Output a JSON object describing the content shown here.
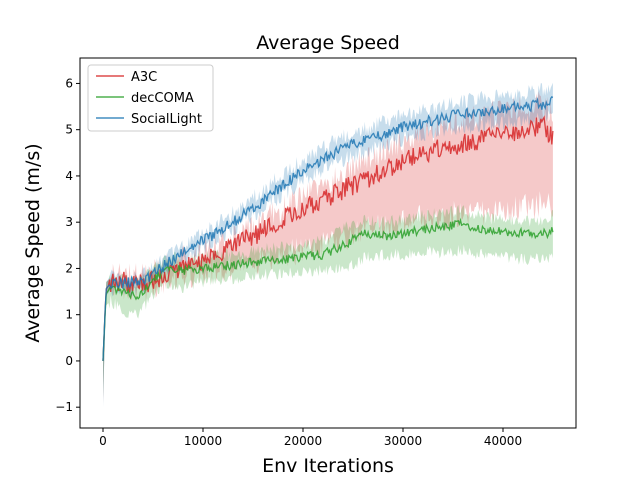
{
  "chart_data": {
    "type": "line",
    "title": "Average Speed",
    "xlabel": "Env Iterations",
    "ylabel": "Average Speed (m/s)",
    "xlim": [
      -2300,
      47300
    ],
    "ylim": [
      -1.45,
      6.55
    ],
    "x_ticks": [
      0,
      10000,
      20000,
      30000,
      40000
    ],
    "x_tick_labels": [
      "0",
      "10000",
      "20000",
      "30000",
      "40000"
    ],
    "y_ticks": [
      -1,
      0,
      1,
      2,
      3,
      4,
      5,
      6
    ],
    "y_tick_labels": [
      "−1",
      "0",
      "1",
      "2",
      "3",
      "4",
      "5",
      "6"
    ],
    "grid": false,
    "legend_position": "upper-left",
    "shaded_band": "min-max range across runs",
    "series": [
      {
        "name": "A3C",
        "color": "#d62728",
        "x": [
          0,
          300,
          800,
          2000,
          4000,
          6000,
          8000,
          10000,
          12000,
          14000,
          16000,
          18000,
          20000,
          22000,
          24000,
          26000,
          28000,
          30000,
          32000,
          34000,
          36000,
          38000,
          40000,
          42000,
          44000,
          45000
        ],
        "mean": [
          0.0,
          1.55,
          1.7,
          1.72,
          1.65,
          1.85,
          2.05,
          2.2,
          2.4,
          2.6,
          2.8,
          3.1,
          3.3,
          3.5,
          3.7,
          3.9,
          4.1,
          4.3,
          4.5,
          4.6,
          4.7,
          4.8,
          4.9,
          5.0,
          5.1,
          4.8
        ],
        "low": [
          -0.9,
          1.4,
          1.6,
          1.6,
          1.55,
          1.7,
          1.8,
          1.9,
          2.0,
          2.1,
          2.2,
          2.3,
          2.4,
          2.5,
          2.6,
          2.8,
          2.9,
          3.0,
          3.1,
          3.1,
          3.2,
          3.2,
          3.3,
          3.3,
          3.4,
          3.3
        ],
        "high": [
          0.2,
          1.7,
          1.8,
          1.85,
          1.8,
          2.0,
          2.2,
          2.35,
          2.55,
          2.75,
          3.0,
          3.3,
          3.55,
          3.8,
          4.05,
          4.3,
          4.55,
          4.75,
          4.95,
          5.1,
          5.2,
          5.3,
          5.4,
          5.5,
          5.55,
          5.4
        ],
        "noise": 0.22
      },
      {
        "name": "decCOMA",
        "color": "#2ca02c",
        "x": [
          0,
          300,
          800,
          2000,
          3500,
          5000,
          6500,
          8000,
          10000,
          12000,
          14000,
          16000,
          18000,
          20000,
          22000,
          24000,
          26000,
          28000,
          30000,
          32000,
          34000,
          36000,
          38000,
          40000,
          42000,
          44000,
          45000
        ],
        "mean": [
          0.0,
          1.45,
          1.6,
          1.5,
          1.4,
          1.75,
          2.05,
          1.95,
          2.0,
          2.05,
          2.1,
          2.15,
          2.2,
          2.25,
          2.3,
          2.5,
          2.75,
          2.7,
          2.75,
          2.85,
          2.9,
          2.95,
          2.85,
          2.8,
          2.75,
          2.75,
          2.8
        ],
        "low": [
          -0.8,
          1.2,
          1.3,
          1.1,
          1.0,
          1.4,
          1.7,
          1.6,
          1.7,
          1.75,
          1.8,
          1.85,
          1.9,
          1.95,
          1.95,
          2.0,
          2.2,
          2.3,
          2.3,
          2.35,
          2.35,
          2.4,
          2.3,
          2.25,
          2.2,
          2.2,
          2.2
        ],
        "high": [
          0.2,
          1.7,
          1.8,
          1.75,
          1.7,
          2.0,
          2.3,
          2.15,
          2.25,
          2.3,
          2.35,
          2.4,
          2.45,
          2.5,
          2.6,
          2.85,
          3.05,
          3.0,
          3.05,
          3.15,
          3.2,
          3.25,
          3.1,
          3.05,
          3.0,
          3.05,
          3.15
        ],
        "noise": 0.1
      },
      {
        "name": "SocialLight",
        "color": "#1f77b4",
        "x": [
          0,
          300,
          800,
          2000,
          4000,
          6000,
          8000,
          10000,
          12000,
          14000,
          16000,
          18000,
          20000,
          22000,
          24000,
          26000,
          28000,
          30000,
          32000,
          34000,
          36000,
          38000,
          40000,
          42000,
          44000,
          45000
        ],
        "mean": [
          0.0,
          1.55,
          1.7,
          1.68,
          1.7,
          2.05,
          2.35,
          2.6,
          2.85,
          3.15,
          3.45,
          3.8,
          4.1,
          4.35,
          4.6,
          4.75,
          4.9,
          5.05,
          5.15,
          5.25,
          5.35,
          5.4,
          5.45,
          5.5,
          5.55,
          5.6
        ],
        "low": [
          -1.0,
          1.4,
          1.55,
          1.55,
          1.55,
          1.9,
          2.2,
          2.45,
          2.7,
          3.0,
          3.3,
          3.6,
          3.9,
          4.15,
          4.35,
          4.5,
          4.65,
          4.8,
          4.9,
          5.0,
          5.05,
          5.1,
          5.15,
          5.2,
          5.25,
          5.3
        ],
        "high": [
          0.2,
          1.7,
          1.85,
          1.8,
          1.85,
          2.2,
          2.5,
          2.8,
          3.05,
          3.35,
          3.7,
          4.05,
          4.35,
          4.6,
          4.85,
          5.0,
          5.15,
          5.3,
          5.4,
          5.5,
          5.6,
          5.7,
          5.75,
          5.8,
          5.85,
          5.9
        ],
        "noise": 0.12
      }
    ]
  }
}
